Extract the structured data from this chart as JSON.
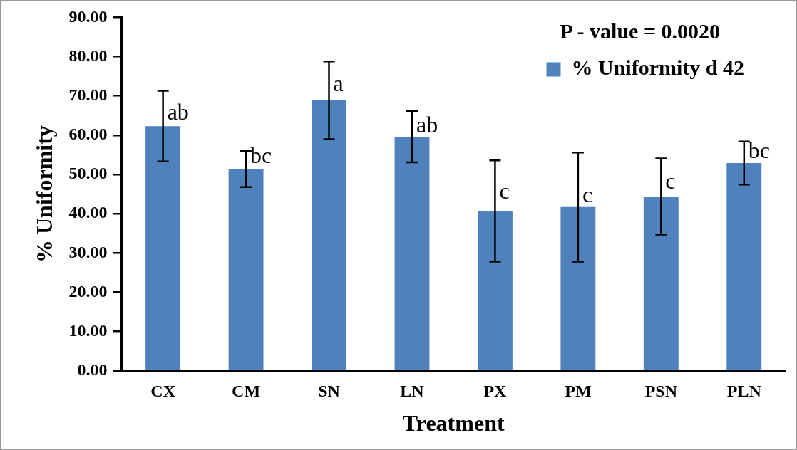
{
  "chart_data": {
    "type": "bar",
    "xlabel": "Treatment",
    "ylabel": "% Uniformity",
    "categories": [
      "CX",
      "CM",
      "SN",
      "LN",
      "PX",
      "PM",
      "PSN",
      "PLN"
    ],
    "series": [
      {
        "name": "% Uniformity d 42",
        "color": "#4f81bd",
        "values": [
          62.3,
          51.4,
          68.9,
          59.6,
          40.7,
          41.7,
          44.4,
          52.9
        ],
        "errors": [
          9.0,
          4.6,
          9.9,
          6.5,
          12.9,
          13.9,
          9.7,
          5.5
        ]
      }
    ],
    "ylim": [
      0,
      90
    ],
    "yticks": [
      {
        "value": 0,
        "label": "0.00"
      },
      {
        "value": 10,
        "label": "10.00"
      },
      {
        "value": 20,
        "label": "20.00"
      },
      {
        "value": 30,
        "label": "30.00"
      },
      {
        "value": 40,
        "label": "40.00"
      },
      {
        "value": 50,
        "label": "50.00"
      },
      {
        "value": 60,
        "label": "60.00"
      },
      {
        "value": 70,
        "label": "70.00"
      },
      {
        "value": 80,
        "label": "80.00"
      },
      {
        "value": 90,
        "label": "90.00"
      }
    ],
    "grid": false,
    "legend": "top right",
    "annotations": [
      "P - value = 0.0020",
      {
        "text": "ab",
        "x": "CX",
        "y": 65.5
      },
      {
        "text": "bc",
        "x": "CM",
        "y": 54.5
      },
      {
        "text": "a",
        "x": "SN",
        "y": 72.7
      },
      {
        "text": "ab",
        "x": "LN",
        "y": 62.2
      },
      {
        "text": "c",
        "x": "PX",
        "y": 45.3
      },
      {
        "text": "c",
        "x": "PM",
        "y": 44.4
      },
      {
        "text": "c",
        "x": "PSN",
        "y": 47.9
      },
      {
        "text": "bc",
        "x": "PLN",
        "y": 55.7
      }
    ]
  }
}
